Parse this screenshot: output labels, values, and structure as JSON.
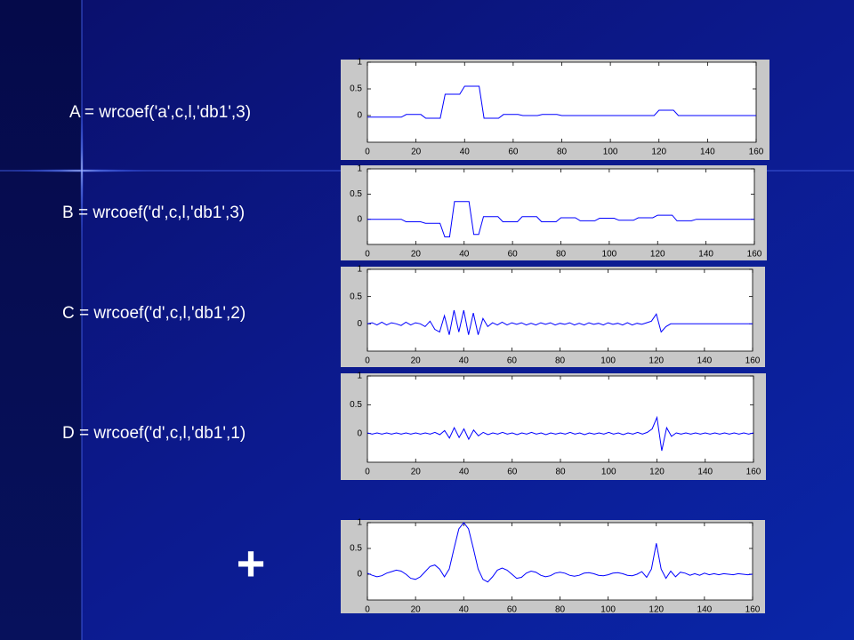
{
  "slide": {
    "formulas": [
      "A = wrcoef('a',c,l,'db1',3)",
      "B = wrcoef('d',c,l,'db1',3)",
      "C = wrcoef('d',c,l,'db1',2)",
      "D = wrcoef('d',c,l,'db1',1)"
    ],
    "plus": "+"
  },
  "chart_data": [
    {
      "type": "line",
      "color": "#0000ff",
      "xlim": [
        0,
        160
      ],
      "ylim": [
        -0.5,
        1
      ],
      "xticks": [
        0,
        20,
        40,
        60,
        80,
        100,
        120,
        140,
        160
      ],
      "yticks": [
        0,
        0.5,
        1
      ],
      "x": [
        0,
        2,
        4,
        6,
        8,
        10,
        12,
        14,
        16,
        18,
        20,
        22,
        24,
        26,
        28,
        30,
        32,
        34,
        36,
        38,
        40,
        42,
        44,
        46,
        48,
        50,
        52,
        54,
        56,
        58,
        60,
        62,
        64,
        66,
        68,
        70,
        72,
        74,
        76,
        78,
        80,
        82,
        84,
        86,
        88,
        90,
        92,
        94,
        96,
        98,
        100,
        102,
        104,
        106,
        108,
        110,
        112,
        114,
        116,
        118,
        120,
        122,
        124,
        126,
        128,
        130,
        132,
        134,
        136,
        138,
        140,
        142,
        144,
        146,
        148,
        150,
        152,
        154,
        156,
        158,
        160
      ],
      "values": [
        -0.03,
        -0.03,
        -0.03,
        -0.03,
        -0.03,
        -0.03,
        -0.03,
        -0.03,
        0.02,
        0.02,
        0.02,
        0.02,
        -0.05,
        -0.05,
        -0.05,
        -0.05,
        0.4,
        0.4,
        0.4,
        0.4,
        0.55,
        0.55,
        0.55,
        0.55,
        -0.05,
        -0.05,
        -0.05,
        -0.05,
        0.02,
        0.02,
        0.02,
        0.02,
        0,
        0,
        0,
        0,
        0.02,
        0.02,
        0.02,
        0.02,
        0,
        0,
        0,
        0,
        0,
        0,
        0,
        0,
        0,
        0,
        0,
        0,
        0,
        0,
        0,
        0,
        0,
        0,
        0,
        0,
        0.1,
        0.1,
        0.1,
        0.1,
        0,
        0,
        0,
        0,
        0,
        0,
        0,
        0,
        0,
        0,
        0,
        0,
        0,
        0,
        0,
        0,
        0
      ]
    },
    {
      "type": "line",
      "color": "#0000ff",
      "xlim": [
        0,
        160
      ],
      "ylim": [
        -0.5,
        1
      ],
      "xticks": [
        0,
        20,
        40,
        60,
        80,
        100,
        120,
        140,
        160
      ],
      "yticks": [
        0,
        0.5,
        1
      ],
      "x": [
        0,
        2,
        4,
        6,
        8,
        10,
        12,
        14,
        16,
        18,
        20,
        22,
        24,
        26,
        28,
        30,
        32,
        34,
        36,
        38,
        40,
        42,
        44,
        46,
        48,
        50,
        52,
        54,
        56,
        58,
        60,
        62,
        64,
        66,
        68,
        70,
        72,
        74,
        76,
        78,
        80,
        82,
        84,
        86,
        88,
        90,
        92,
        94,
        96,
        98,
        100,
        102,
        104,
        106,
        108,
        110,
        112,
        114,
        116,
        118,
        120,
        122,
        124,
        126,
        128,
        130,
        132,
        134,
        136,
        138,
        140,
        142,
        144,
        146,
        148,
        150,
        152,
        154,
        156,
        158,
        160
      ],
      "values": [
        0,
        0,
        0,
        0,
        0,
        0,
        0,
        0,
        -0.05,
        -0.05,
        -0.05,
        -0.05,
        -0.08,
        -0.08,
        -0.08,
        -0.08,
        -0.35,
        -0.35,
        0.35,
        0.35,
        0.35,
        0.35,
        -0.3,
        -0.3,
        0.05,
        0.05,
        0.05,
        0.05,
        -0.05,
        -0.05,
        -0.05,
        -0.05,
        0.05,
        0.05,
        0.05,
        0.05,
        -0.05,
        -0.05,
        -0.05,
        -0.05,
        0.03,
        0.03,
        0.03,
        0.03,
        -0.03,
        -0.03,
        -0.03,
        -0.03,
        0.02,
        0.02,
        0.02,
        0.02,
        -0.02,
        -0.02,
        -0.02,
        -0.02,
        0.03,
        0.03,
        0.03,
        0.03,
        0.08,
        0.08,
        0.08,
        0.08,
        -0.03,
        -0.03,
        -0.03,
        -0.03,
        0,
        0,
        0,
        0,
        0,
        0,
        0,
        0,
        0,
        0,
        0,
        0,
        0
      ]
    },
    {
      "type": "line",
      "color": "#0000ff",
      "xlim": [
        0,
        160
      ],
      "ylim": [
        -0.5,
        1
      ],
      "xticks": [
        0,
        20,
        40,
        60,
        80,
        100,
        120,
        140,
        160
      ],
      "yticks": [
        0,
        0.5,
        1
      ],
      "x": [
        0,
        2,
        4,
        6,
        8,
        10,
        12,
        14,
        16,
        18,
        20,
        22,
        24,
        26,
        28,
        30,
        32,
        34,
        36,
        38,
        40,
        42,
        44,
        46,
        48,
        50,
        52,
        54,
        56,
        58,
        60,
        62,
        64,
        66,
        68,
        70,
        72,
        74,
        76,
        78,
        80,
        82,
        84,
        86,
        88,
        90,
        92,
        94,
        96,
        98,
        100,
        102,
        104,
        106,
        108,
        110,
        112,
        114,
        116,
        118,
        120,
        122,
        124,
        126,
        128,
        130,
        132,
        134,
        136,
        138,
        140,
        142,
        144,
        146,
        148,
        150,
        152,
        154,
        156,
        158,
        160
      ],
      "values": [
        0,
        0.02,
        -0.02,
        0.03,
        -0.02,
        0.02,
        0,
        -0.03,
        0.03,
        -0.02,
        0.02,
        0,
        -0.05,
        0.05,
        -0.1,
        -0.15,
        0.15,
        -0.2,
        0.25,
        -0.15,
        0.25,
        -0.2,
        0.2,
        -0.2,
        0.1,
        -0.05,
        0.02,
        -0.02,
        0.03,
        -0.02,
        0.02,
        -0.01,
        0.02,
        -0.02,
        0.01,
        -0.02,
        0.02,
        -0.01,
        0.02,
        -0.02,
        0.01,
        -0.01,
        0.02,
        -0.02,
        0.01,
        -0.02,
        0.02,
        -0.01,
        0.01,
        -0.02,
        0.02,
        -0.01,
        0.01,
        -0.02,
        0.02,
        -0.02,
        0.01,
        -0.01,
        0.02,
        0.05,
        0.18,
        -0.15,
        -0.05,
        0,
        0,
        0,
        0,
        0,
        0,
        0,
        0,
        0,
        0,
        0,
        0,
        0,
        0,
        0,
        0,
        0,
        0
      ]
    },
    {
      "type": "line",
      "color": "#0000ff",
      "xlim": [
        0,
        160
      ],
      "ylim": [
        -0.5,
        1
      ],
      "xticks": [
        0,
        20,
        40,
        60,
        80,
        100,
        120,
        140,
        160
      ],
      "yticks": [
        0,
        0.5,
        1
      ],
      "x": [
        0,
        2,
        4,
        6,
        8,
        10,
        12,
        14,
        16,
        18,
        20,
        22,
        24,
        26,
        28,
        30,
        32,
        34,
        36,
        38,
        40,
        42,
        44,
        46,
        48,
        50,
        52,
        54,
        56,
        58,
        60,
        62,
        64,
        66,
        68,
        70,
        72,
        74,
        76,
        78,
        80,
        82,
        84,
        86,
        88,
        90,
        92,
        94,
        96,
        98,
        100,
        102,
        104,
        106,
        108,
        110,
        112,
        114,
        116,
        118,
        120,
        122,
        124,
        126,
        128,
        130,
        132,
        134,
        136,
        138,
        140,
        142,
        144,
        146,
        148,
        150,
        152,
        154,
        156,
        158,
        160
      ],
      "values": [
        0.01,
        -0.01,
        0.01,
        -0.01,
        0.01,
        -0.01,
        0.01,
        -0.01,
        0.01,
        -0.01,
        0.01,
        -0.01,
        0.01,
        -0.01,
        0.02,
        -0.02,
        0.05,
        -0.08,
        0.1,
        -0.07,
        0.08,
        -0.1,
        0.06,
        -0.04,
        0.02,
        -0.02,
        0.01,
        -0.01,
        0.02,
        -0.01,
        0.01,
        -0.02,
        0.01,
        -0.01,
        0.02,
        -0.01,
        0.01,
        -0.02,
        0.01,
        -0.01,
        0.01,
        -0.01,
        0.02,
        -0.01,
        0.01,
        -0.02,
        0.01,
        -0.01,
        0.01,
        -0.01,
        0.02,
        -0.01,
        0.01,
        -0.02,
        0.01,
        -0.01,
        0.02,
        -0.01,
        0.02,
        0.08,
        0.28,
        -0.3,
        0.1,
        -0.05,
        0.01,
        -0.01,
        0.01,
        -0.01,
        0.01,
        -0.01,
        0.01,
        -0.01,
        0.01,
        -0.01,
        0.01,
        -0.01,
        0.01,
        -0.01,
        0.01,
        -0.01,
        0.01
      ]
    },
    {
      "type": "line",
      "color": "#0000ff",
      "xlim": [
        0,
        160
      ],
      "ylim": [
        -0.5,
        1
      ],
      "xticks": [
        0,
        20,
        40,
        60,
        80,
        100,
        120,
        140,
        160
      ],
      "yticks": [
        0,
        0.5,
        1
      ],
      "x": [
        0,
        2,
        4,
        6,
        8,
        10,
        12,
        14,
        16,
        18,
        20,
        22,
        24,
        26,
        28,
        30,
        32,
        34,
        36,
        38,
        40,
        42,
        44,
        46,
        48,
        50,
        52,
        54,
        56,
        58,
        60,
        62,
        64,
        66,
        68,
        70,
        72,
        74,
        76,
        78,
        80,
        82,
        84,
        86,
        88,
        90,
        92,
        94,
        96,
        98,
        100,
        102,
        104,
        106,
        108,
        110,
        112,
        114,
        116,
        118,
        120,
        122,
        124,
        126,
        128,
        130,
        132,
        134,
        136,
        138,
        140,
        142,
        144,
        146,
        148,
        150,
        152,
        154,
        156,
        158,
        160
      ],
      "values": [
        0.02,
        -0.02,
        -0.05,
        -0.03,
        0.02,
        0.05,
        0.08,
        0.06,
        0,
        -0.08,
        -0.1,
        -0.05,
        0.05,
        0.15,
        0.18,
        0.1,
        -0.05,
        0.1,
        0.5,
        0.88,
        1,
        0.88,
        0.5,
        0.1,
        -0.1,
        -0.15,
        -0.05,
        0.08,
        0.12,
        0.08,
        0,
        -0.08,
        -0.06,
        0.02,
        0.06,
        0.04,
        -0.02,
        -0.05,
        -0.03,
        0.02,
        0.04,
        0.02,
        -0.02,
        -0.04,
        -0.02,
        0.02,
        0.03,
        0.01,
        -0.02,
        -0.03,
        -0.01,
        0.02,
        0.03,
        0.01,
        -0.02,
        -0.03,
        0,
        0.05,
        -0.06,
        0.1,
        0.6,
        0.1,
        -0.08,
        0.06,
        -0.05,
        0.04,
        0.02,
        -0.02,
        0.01,
        -0.02,
        0.02,
        -0.01,
        0.01,
        -0.01,
        0.01,
        0,
        -0.01,
        0.01,
        0,
        -0.01,
        0
      ]
    }
  ]
}
